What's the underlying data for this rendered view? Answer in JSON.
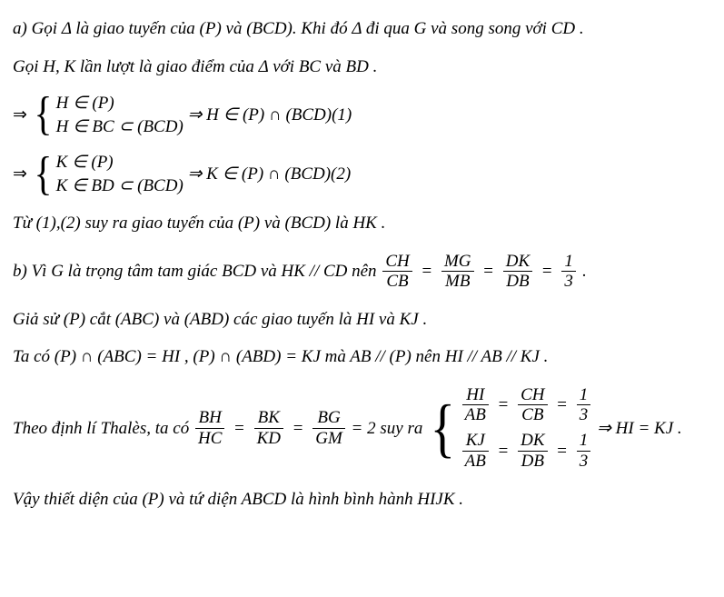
{
  "font": {
    "family": "Times New Roman",
    "body_size_pt": 14,
    "color": "#000000"
  },
  "background": "#ffffff",
  "a_intro": "a) Gọi Δ là giao tuyến của (P) và (BCD). Khi đó Δ đi qua G và song song với CD .",
  "a_hk": "Gọi H, K lần lượt là giao điểm của  Δ  với  BC  và  BD .",
  "sys1": {
    "row1": "H ∈ (P)",
    "row2": "H ∈ BC ⊂ (BCD)",
    "tail": "⇒ H ∈ (P) ∩ (BCD)(1)"
  },
  "sys2": {
    "row1": "K ∈ (P)",
    "row2": "K ∈ BD ⊂ (BCD)",
    "tail": "⇒ K ∈ (P) ∩ (BCD)(2)"
  },
  "from12": "Từ (1),(2) suy ra giao tuyến của (P) và (BCD) là HK .",
  "b_intro_pre": "b) Vì G là trọng tâm tam giác BCD và HK // CD nên  ",
  "b_ratio": {
    "f1": {
      "num": "CH",
      "den": "CB"
    },
    "f2": {
      "num": "MG",
      "den": "MB"
    },
    "f3": {
      "num": "DK",
      "den": "DB"
    },
    "f4": {
      "num": "1",
      "den": "3"
    }
  },
  "b_dot": ".",
  "gs": "Giả sử (P) cắt (ABC) và (ABD) các giao tuyến là  HI  và  KJ .",
  "tac": "Ta có (P) ∩ (ABC) = HI , (P) ∩ (ABD) = KJ  mà  AB // (P)  nên  HI // AB // KJ .",
  "thales_pre": "Theo định lí Thalès, ta có  ",
  "thales_chain": {
    "f1": {
      "num": "BH",
      "den": "HC"
    },
    "f2": {
      "num": "BK",
      "den": "KD"
    },
    "f3": {
      "num": "BG",
      "den": "GM"
    },
    "val": " = 2 "
  },
  "suyra": " suy ra ",
  "thales_sys": {
    "r1": {
      "fa": {
        "num": "HI",
        "den": "AB"
      },
      "fb": {
        "num": "CH",
        "den": "CB"
      },
      "fc": {
        "num": "1",
        "den": "3"
      }
    },
    "r2": {
      "fa": {
        "num": "KJ",
        "den": "AB"
      },
      "fb": {
        "num": "DK",
        "den": "DB"
      },
      "fc": {
        "num": "1",
        "den": "3"
      }
    }
  },
  "thales_tail": " ⇒ HI = KJ .",
  "conclusion": "Vậy thiết diện của (P) và tứ diện  ABCD  là hình bình hành  HIJK ."
}
